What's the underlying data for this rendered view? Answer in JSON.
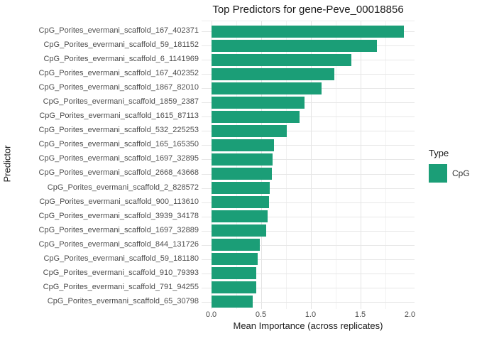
{
  "chart_data": {
    "type": "bar",
    "orientation": "horizontal",
    "title": "Top Predictors for gene-Peve_00018856",
    "xlabel": "Mean Importance (across replicates)",
    "ylabel": "Predictor",
    "series_name": "CpG",
    "categories": [
      "CpG_Porites_evermani_scaffold_167_402371",
      "CpG_Porites_evermani_scaffold_59_181152",
      "CpG_Porites_evermani_scaffold_6_1141969",
      "CpG_Porites_evermani_scaffold_167_402352",
      "CpG_Porites_evermani_scaffold_1867_82010",
      "CpG_Porites_evermani_scaffold_1859_2387",
      "CpG_Porites_evermani_scaffold_1615_87113",
      "CpG_Porites_evermani_scaffold_532_225253",
      "CpG_Porites_evermani_scaffold_165_165350",
      "CpG_Porites_evermani_scaffold_1697_32895",
      "CpG_Porites_evermani_scaffold_2668_43668",
      "CpG_Porites_evermani_scaffold_2_828572",
      "CpG_Porites_evermani_scaffold_900_113610",
      "CpG_Porites_evermani_scaffold_3939_34178",
      "CpG_Porites_evermani_scaffold_1697_32889",
      "CpG_Porites_evermani_scaffold_844_131726",
      "CpG_Porites_evermani_scaffold_59_181180",
      "CpG_Porites_evermani_scaffold_910_79393",
      "CpG_Porites_evermani_scaffold_791_94255",
      "CpG_Porites_evermani_scaffold_65_30798"
    ],
    "values": [
      1.94,
      1.67,
      1.41,
      1.24,
      1.11,
      0.94,
      0.89,
      0.76,
      0.63,
      0.62,
      0.61,
      0.59,
      0.58,
      0.57,
      0.55,
      0.49,
      0.47,
      0.45,
      0.45,
      0.42
    ],
    "x_ticks": [
      "0.0",
      "0.5",
      "1.0",
      "1.5",
      "2.0"
    ],
    "xlim": [
      0,
      2.04
    ],
    "x_major_interval": 0.5,
    "x_minor_interval": 0.25,
    "grid": true,
    "legend": {
      "title": "Type",
      "position": "right",
      "entries": [
        {
          "label": "CpG",
          "color": "#1B9E77"
        }
      ]
    }
  },
  "colors": {
    "bar": "#1B9E77",
    "grid_major": "#E3E3E3",
    "grid_minor": "#F1F1F1",
    "axis_text": "#4D4D4D",
    "title_text": "#1A1A1A",
    "background": "#FFFFFF"
  }
}
